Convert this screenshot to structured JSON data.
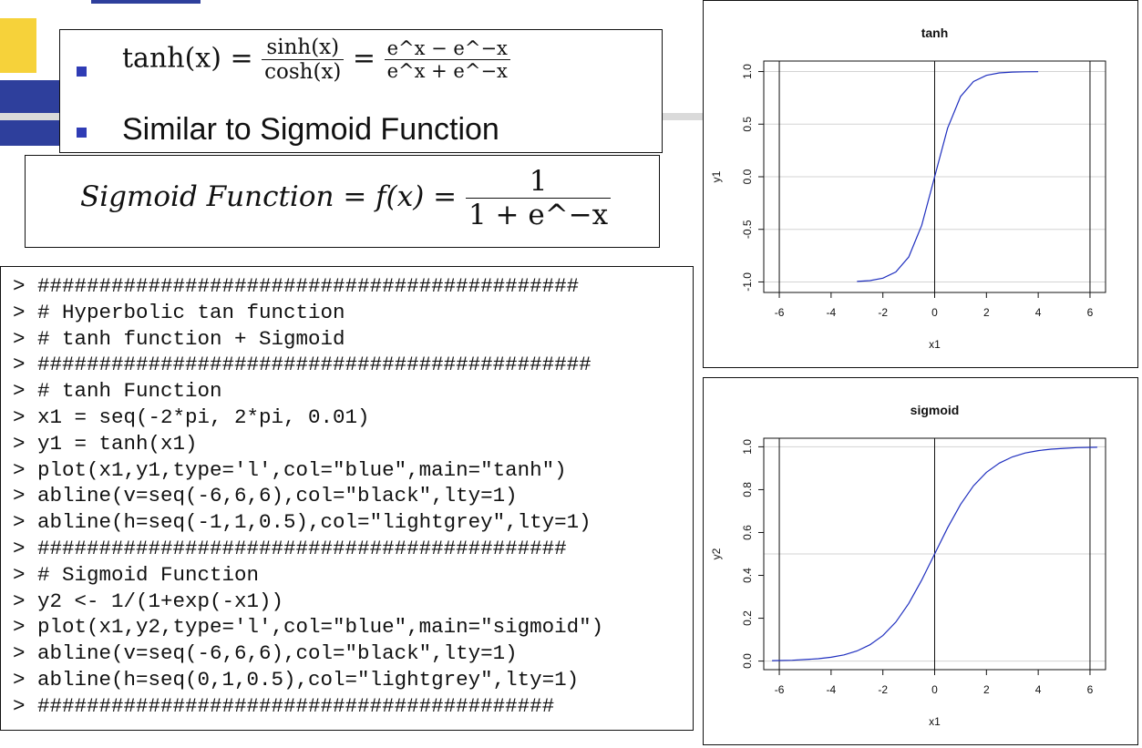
{
  "bullets": {
    "tanh_lhs": "tanh(x) = ",
    "tanh_num": "sinh(x)",
    "tanh_den": "cosh(x)",
    "tanh_eq": " = ",
    "tanh_num2": "e^x − e^−x",
    "tanh_den2": "e^x + e^−x",
    "similar": "Similar to Sigmoid Function"
  },
  "sigmoid_formula": {
    "lhs": "Sigmoid Function = f(x) = ",
    "num": "1",
    "den": "1 + e^−x"
  },
  "code_lines": [
    "> ############################################",
    "> # Hyperbolic tan function",
    "> # tanh function + Sigmoid",
    "> #############################################",
    "> # tanh Function",
    "> x1 = seq(-2*pi, 2*pi, 0.01)",
    "> y1 = tanh(x1)",
    "> plot(x1,y1,type='l',col=\"blue\",main=\"tanh\")",
    "> abline(v=seq(-6,6,6),col=\"black\",lty=1)",
    "> abline(h=seq(-1,1,0.5),col=\"lightgrey\",lty=1)",
    "> ###########################################",
    "> # Sigmoid Function",
    "> y2 <- 1/(1+exp(-x1))",
    "> plot(x1,y2,type='l',col=\"blue\",main=\"sigmoid\")",
    "> abline(v=seq(-6,6,6),col=\"black\",lty=1)",
    "> abline(h=seq(0,1,0.5),col=\"lightgrey\",lty=1)",
    "> ##########################################"
  ],
  "chart_data": [
    {
      "type": "line",
      "title": "tanh",
      "xlabel": "x1",
      "ylabel": "y1",
      "x_ticks": [
        "-6",
        "-4",
        "-2",
        "0",
        "2",
        "4",
        "6"
      ],
      "y_ticks": [
        "-1.0",
        "-0.5",
        "0.0",
        "0.5",
        "1.0"
      ],
      "xlim": [
        -6.6,
        6.6
      ],
      "ylim": [
        -1.1,
        1.1
      ],
      "vlines": [
        -6,
        0,
        6
      ],
      "hlines": [
        -1,
        -0.5,
        0,
        0.5,
        1
      ],
      "x": [
        -3.0,
        -2.5,
        -2.0,
        -1.5,
        -1.0,
        -0.5,
        0,
        0.5,
        1.0,
        1.5,
        2.0,
        2.5,
        3.0,
        3.5,
        4.0
      ],
      "y": [
        -0.995,
        -0.987,
        -0.964,
        -0.905,
        -0.762,
        -0.462,
        0,
        0.462,
        0.762,
        0.905,
        0.964,
        0.987,
        0.995,
        0.998,
        0.999
      ],
      "line_color": "#1f2fbf"
    },
    {
      "type": "line",
      "title": "sigmoid",
      "xlabel": "x1",
      "ylabel": "y2",
      "x_ticks": [
        "-6",
        "-4",
        "-2",
        "0",
        "2",
        "4",
        "6"
      ],
      "y_ticks": [
        "0.0",
        "0.2",
        "0.4",
        "0.6",
        "0.8",
        "1.0"
      ],
      "xlim": [
        -6.6,
        6.6
      ],
      "ylim": [
        -0.04,
        1.04
      ],
      "vlines": [
        -6,
        0,
        6
      ],
      "hlines": [
        0,
        0.5,
        1
      ],
      "x": [
        -6.28,
        -5.5,
        -5.0,
        -4.5,
        -4.0,
        -3.5,
        -3.0,
        -2.5,
        -2.0,
        -1.5,
        -1.0,
        -0.5,
        0,
        0.5,
        1.0,
        1.5,
        2.0,
        2.5,
        3.0,
        3.5,
        4.0,
        4.5,
        5.0,
        5.5,
        6.28
      ],
      "y": [
        0.002,
        0.004,
        0.007,
        0.011,
        0.018,
        0.029,
        0.047,
        0.076,
        0.119,
        0.182,
        0.269,
        0.378,
        0.5,
        0.622,
        0.731,
        0.818,
        0.881,
        0.924,
        0.953,
        0.971,
        0.982,
        0.989,
        0.993,
        0.996,
        0.998
      ],
      "line_color": "#1f2fbf"
    }
  ]
}
